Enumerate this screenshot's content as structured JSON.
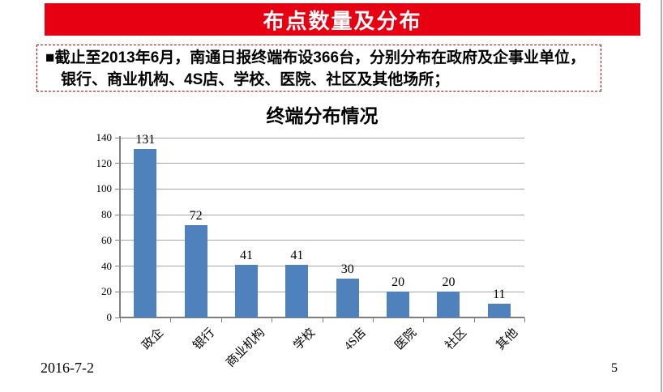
{
  "slide": {
    "banner": {
      "title": "布点数量及分布"
    },
    "body": {
      "bullet": "■",
      "lines": [
        "■截止至2013年6月，南通日报终端布设366台，分别分布在政府及企事业单位，",
        "银行、商业机构、4S店、学校、医院、社区及其他场所；"
      ]
    },
    "footer": {
      "date": "2016-7-2",
      "page_number": "5"
    }
  },
  "chart_data": {
    "type": "bar",
    "title": "终端分布情况",
    "categories": [
      "政企",
      "银行",
      "商业机构",
      "学校",
      "4S店",
      "医院",
      "社区",
      "其他"
    ],
    "values": [
      131,
      72,
      41,
      41,
      30,
      20,
      20,
      11
    ],
    "xlabel": "",
    "ylabel": "",
    "ylim": [
      0,
      140
    ],
    "yticks": [
      0,
      20,
      40,
      60,
      80,
      100,
      120,
      140
    ],
    "grid": true,
    "legend_position": "none",
    "data_labels": true,
    "category_label_rotation_deg": 45,
    "bar_color": "#4f81bd",
    "axis_color": "#7f7f7f",
    "gridline_color": "#a6a6a6"
  },
  "colors": {
    "banner_background": "#e60012",
    "banner_text": "#ffffff",
    "textbox_border": "#c00000",
    "body_text": "#000000",
    "slide_edge": "#b0b0bc"
  }
}
